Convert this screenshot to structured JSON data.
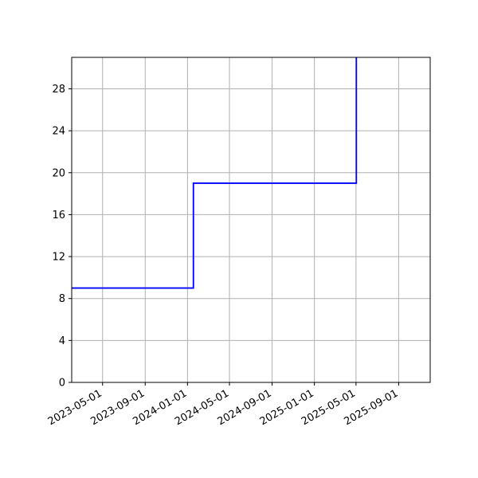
{
  "chart_data": {
    "type": "line",
    "title": "",
    "xlabel": "",
    "ylabel": "",
    "x_axis_type": "date",
    "xlim": [
      "2023-02-01",
      "2025-12-01"
    ],
    "ylim": [
      0,
      31
    ],
    "x_ticks": [
      "2023-05-01",
      "2023-09-01",
      "2024-01-01",
      "2024-05-01",
      "2024-09-01",
      "2025-01-01",
      "2025-05-01",
      "2025-09-01"
    ],
    "y_ticks": [
      0,
      4,
      8,
      12,
      16,
      20,
      24,
      28
    ],
    "grid": true,
    "step": "post",
    "series": [
      {
        "color": "#0000ff",
        "points": [
          {
            "x": "2023-02-01",
            "y": 9
          },
          {
            "x": "2024-01-18",
            "y": 19
          },
          {
            "x": "2025-05-02",
            "y": 31
          }
        ]
      }
    ]
  }
}
